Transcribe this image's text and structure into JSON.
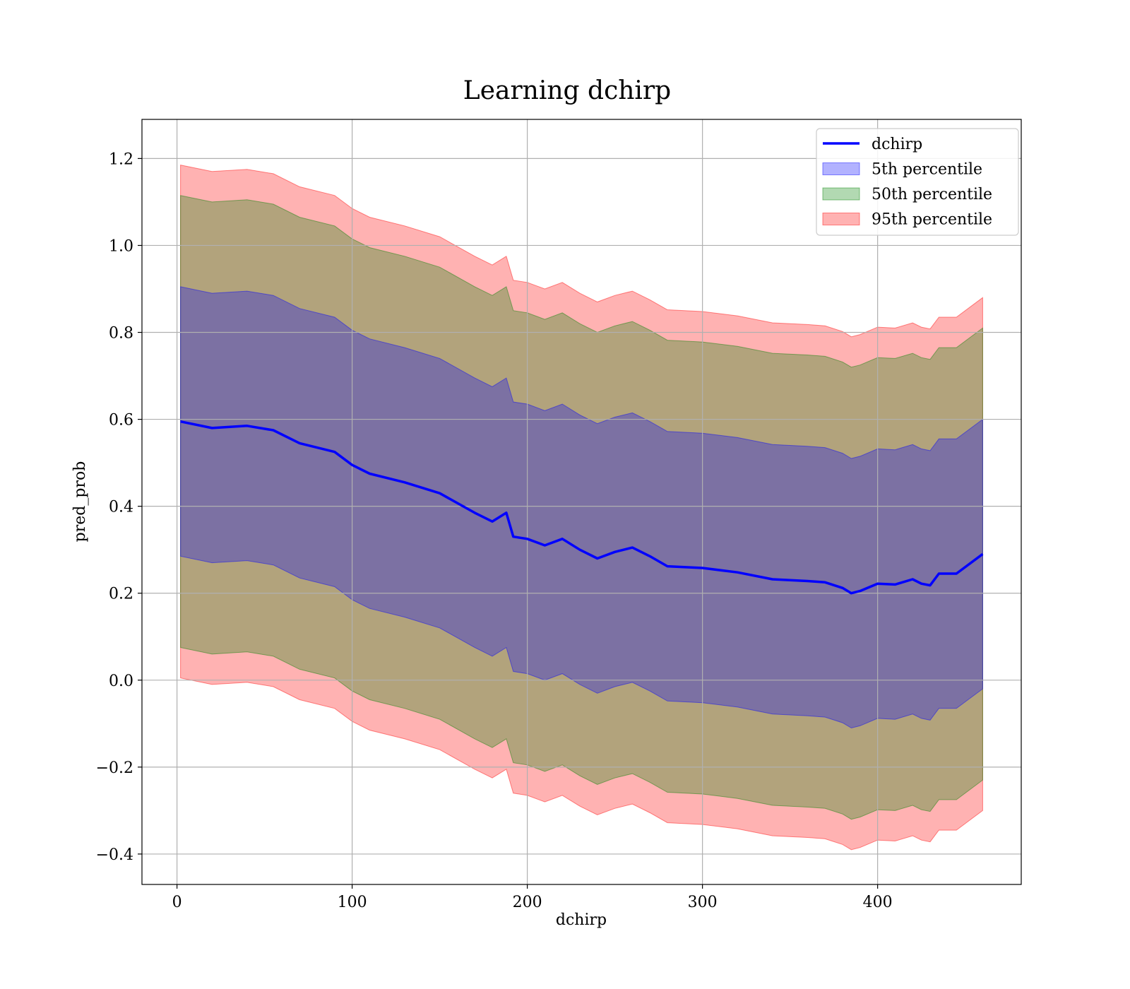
{
  "chart_data": {
    "type": "area",
    "title": "Learning dchirp",
    "xlabel": "dchirp",
    "ylabel": "pred_prob",
    "xlim": [
      -20,
      482
    ],
    "ylim": [
      -0.47,
      1.29
    ],
    "x_ticks": [
      0,
      100,
      200,
      300,
      400
    ],
    "x_tick_labels": [
      "0",
      "100",
      "200",
      "300",
      "400"
    ],
    "y_ticks": [
      -0.4,
      -0.2,
      0.0,
      0.2,
      0.4,
      0.6,
      0.8,
      1.0,
      1.2
    ],
    "y_tick_labels": [
      "−0.4",
      "−0.2",
      "0.0",
      "0.2",
      "0.4",
      "0.6",
      "0.8",
      "1.0",
      "1.2"
    ],
    "grid": true,
    "legend_position": "top-right",
    "x": [
      2,
      20,
      40,
      55,
      70,
      90,
      100,
      110,
      130,
      150,
      170,
      180,
      188,
      192,
      200,
      210,
      220,
      230,
      240,
      250,
      260,
      270,
      280,
      300,
      320,
      340,
      360,
      370,
      380,
      385,
      390,
      400,
      410,
      420,
      425,
      430,
      435,
      440,
      445,
      460
    ],
    "series": [
      {
        "name": "dchirp",
        "color": "#0000ff",
        "kind": "line",
        "values": [
          0.595,
          0.58,
          0.585,
          0.575,
          0.545,
          0.525,
          0.495,
          0.475,
          0.455,
          0.43,
          0.385,
          0.365,
          0.385,
          0.33,
          0.325,
          0.31,
          0.325,
          0.3,
          0.28,
          0.295,
          0.305,
          0.285,
          0.262,
          0.258,
          0.248,
          0.232,
          0.228,
          0.225,
          0.212,
          0.2,
          0.205,
          0.222,
          0.22,
          0.232,
          0.222,
          0.218,
          0.245,
          0.245,
          0.245,
          0.29
        ]
      },
      {
        "name": "5th percentile",
        "color": "#0000ff",
        "kind": "band",
        "half_width": 0.31
      },
      {
        "name": "50th percentile",
        "color": "#008000",
        "kind": "band",
        "half_width": 0.52
      },
      {
        "name": "95th percentile",
        "color": "#ff0000",
        "kind": "band",
        "half_width": 0.59
      }
    ]
  }
}
